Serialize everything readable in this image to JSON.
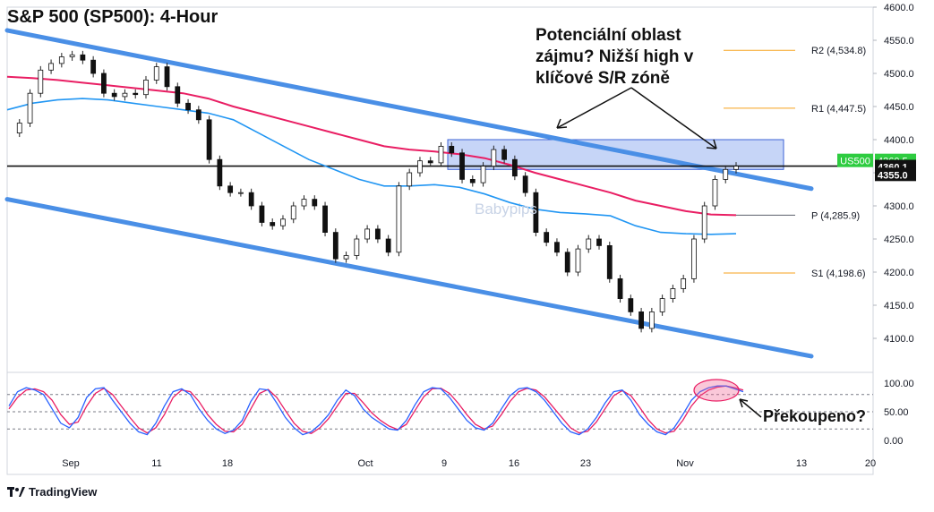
{
  "title": "S&P 500 (SP500): 4-Hour",
  "annotation_main": [
    "Potenciální oblast",
    "zájmu? Nižší high v",
    "klíčové S/R zóně"
  ],
  "annotation_overbought": "Překoupeno?",
  "watermark": "Babypips",
  "footer_logo_icon": "tradingview-logo-icon",
  "footer_text": "TradingView",
  "colors": {
    "up": "#26a69a",
    "down": "#8b0a16",
    "candle_up_body": "#26a69a",
    "ma_fast": "#2196f3",
    "ma_slow": "#e91e63",
    "channel": "#4a8fe6",
    "zone": "#5b86e8",
    "pivot_resistance": "#f7a21b",
    "stoch_k": "#2962ff",
    "stoch_d": "#e91e63",
    "last_price": "#2ecc40"
  },
  "chart_data": [
    {
      "type": "line",
      "title": "S&P 500 (SP500): 4-Hour",
      "x_ticks": [
        "Sep",
        "11",
        "18",
        "Oct",
        "9",
        "16",
        "23",
        "Nov",
        "13",
        "20"
      ],
      "y_ticks": [
        "4600.0",
        "4550.0",
        "4500.0",
        "4450.0",
        "4400.0",
        "4350.0",
        "4300.0",
        "4250.0",
        "4200.0",
        "4150.0",
        "4100.0"
      ],
      "ylim": [
        4070,
        4600
      ],
      "price_series": [
        {
          "x": "Aug 30",
          "y": 4410
        },
        {
          "x": "Aug 31",
          "y": 4425
        },
        {
          "x": "Sep 1",
          "y": 4470
        },
        {
          "x": "Sep 2",
          "y": 4505
        },
        {
          "x": "Sep 5",
          "y": 4515
        },
        {
          "x": "Sep 6",
          "y": 4525
        },
        {
          "x": "Sep 7",
          "y": 4528
        },
        {
          "x": "Sep 8",
          "y": 4520
        },
        {
          "x": "Sep 9",
          "y": 4500
        },
        {
          "x": "Sep 11",
          "y": 4470
        },
        {
          "x": "Sep 12",
          "y": 4465
        },
        {
          "x": "Sep 13",
          "y": 4470
        },
        {
          "x": "Sep 14",
          "y": 4468
        },
        {
          "x": "Sep 15",
          "y": 4490
        },
        {
          "x": "Sep 16",
          "y": 4510
        },
        {
          "x": "Sep 17",
          "y": 4480
        },
        {
          "x": "Sep 18",
          "y": 4455
        },
        {
          "x": "Sep 19",
          "y": 4445
        },
        {
          "x": "Sep 20",
          "y": 4430
        },
        {
          "x": "Sep 21",
          "y": 4370
        },
        {
          "x": "Sep 22",
          "y": 4330
        },
        {
          "x": "Sep 25",
          "y": 4320
        },
        {
          "x": "Sep 26",
          "y": 4320
        },
        {
          "x": "Sep 27",
          "y": 4300
        },
        {
          "x": "Sep 28",
          "y": 4275
        },
        {
          "x": "Sep 29",
          "y": 4270
        },
        {
          "x": "Sep 30",
          "y": 4280
        },
        {
          "x": "Oct 2",
          "y": 4300
        },
        {
          "x": "Oct 3",
          "y": 4310
        },
        {
          "x": "Oct 4",
          "y": 4300
        },
        {
          "x": "Oct 5",
          "y": 4260
        },
        {
          "x": "Oct 6",
          "y": 4220
        },
        {
          "x": "Oct 7",
          "y": 4225
        },
        {
          "x": "Oct 8",
          "y": 4250
        },
        {
          "x": "Oct 9",
          "y": 4265
        },
        {
          "x": "Oct 10",
          "y": 4250
        },
        {
          "x": "Oct 11",
          "y": 4230
        },
        {
          "x": "Oct 12",
          "y": 4330
        },
        {
          "x": "Oct 13",
          "y": 4350
        },
        {
          "x": "Oct 14",
          "y": 4368
        },
        {
          "x": "Oct 15",
          "y": 4365
        },
        {
          "x": "Oct 16",
          "y": 4390
        },
        {
          "x": "Oct 17",
          "y": 4380
        },
        {
          "x": "Oct 18",
          "y": 4340
        },
        {
          "x": "Oct 19",
          "y": 4335
        },
        {
          "x": "Oct 20",
          "y": 4360
        },
        {
          "x": "Oct 22",
          "y": 4385
        },
        {
          "x": "Oct 23",
          "y": 4370
        },
        {
          "x": "Oct 24",
          "y": 4345
        },
        {
          "x": "Oct 25",
          "y": 4320
        },
        {
          "x": "Oct 26",
          "y": 4260
        },
        {
          "x": "Oct 27",
          "y": 4245
        },
        {
          "x": "Oct 28",
          "y": 4230
        },
        {
          "x": "Oct 29",
          "y": 4200
        },
        {
          "x": "Oct 30",
          "y": 4235
        },
        {
          "x": "Oct 31",
          "y": 4250
        },
        {
          "x": "Nov 1",
          "y": 4240
        },
        {
          "x": "Nov 2",
          "y": 4190
        },
        {
          "x": "Nov 3",
          "y": 4160
        },
        {
          "x": "Nov 4",
          "y": 4140
        },
        {
          "x": "Nov 5",
          "y": 4115
        },
        {
          "x": "Nov 6",
          "y": 4140
        },
        {
          "x": "Nov 7",
          "y": 4160
        },
        {
          "x": "Nov 8",
          "y": 4175
        },
        {
          "x": "Nov 9",
          "y": 4190
        },
        {
          "x": "Nov 10",
          "y": 4250
        },
        {
          "x": "Nov 11",
          "y": 4300
        },
        {
          "x": "Nov 12",
          "y": 4340
        },
        {
          "x": "Nov 13",
          "y": 4355
        },
        {
          "x": "Nov 14",
          "y": 4360
        }
      ],
      "ma_fast": [
        4445,
        4455,
        4460,
        4462,
        4460,
        4455,
        4450,
        4445,
        4440,
        4430,
        4410,
        4390,
        4370,
        4355,
        4340,
        4330,
        4330,
        4332,
        4328,
        4318,
        4305,
        4295,
        4290,
        4288,
        4285,
        4270,
        4260,
        4258,
        4257,
        4258
      ],
      "ma_slow": [
        4495,
        4493,
        4490,
        4486,
        4482,
        4478,
        4474,
        4470,
        4462,
        4450,
        4440,
        4430,
        4420,
        4410,
        4400,
        4390,
        4385,
        4382,
        4378,
        4372,
        4362,
        4350,
        4340,
        4330,
        4320,
        4308,
        4300,
        4292,
        4287,
        4286
      ],
      "channel_lines": [
        {
          "name": "upper",
          "start_y": 4565,
          "end_y": 4326
        },
        {
          "name": "lower",
          "start_y": 4310,
          "end_y": 4073
        }
      ],
      "horizontal_line": 4360.1,
      "zone": {
        "from": 4355,
        "to": 4400
      },
      "pivot_levels": [
        {
          "name": "R2",
          "value": 4534.8,
          "label": "R2 (4,534.8)"
        },
        {
          "name": "R1",
          "value": 4447.5,
          "label": "R1 (4,447.5)"
        },
        {
          "name": "P",
          "value": 4285.9,
          "label": "P (4,285.9)"
        },
        {
          "name": "S1",
          "value": 4198.6,
          "label": "S1 (4,198.6)"
        }
      ],
      "price_tags": [
        {
          "label": "US500",
          "value": "4360.5",
          "kind": "symbol"
        },
        {
          "label": "",
          "value": "4360.1",
          "kind": "line"
        },
        {
          "label": "",
          "value": "4355.0",
          "kind": "line"
        }
      ]
    },
    {
      "type": "line",
      "title": "",
      "y_ticks": [
        "100.00",
        "50.00",
        "0.00"
      ],
      "ylim": [
        0,
        100
      ],
      "levels": [
        80,
        50,
        20
      ],
      "stoch_k": [
        60,
        85,
        92,
        88,
        80,
        55,
        30,
        22,
        40,
        75,
        90,
        92,
        70,
        50,
        30,
        15,
        10,
        30,
        60,
        85,
        90,
        80,
        55,
        35,
        20,
        12,
        18,
        35,
        68,
        90,
        88,
        65,
        40,
        22,
        10,
        15,
        28,
        45,
        70,
        88,
        78,
        55,
        40,
        30,
        20,
        18,
        35,
        62,
        85,
        92,
        90,
        75,
        55,
        35,
        22,
        18,
        30,
        55,
        78,
        90,
        92,
        85,
        70,
        50,
        30,
        15,
        10,
        20,
        40,
        65,
        85,
        88,
        70,
        45,
        28,
        15,
        10,
        22,
        45,
        70,
        85,
        92,
        95,
        95,
        90,
        85
      ],
      "stoch_d": [
        55,
        75,
        88,
        90,
        85,
        70,
        45,
        28,
        32,
        60,
        82,
        91,
        80,
        60,
        40,
        22,
        13,
        22,
        45,
        75,
        88,
        85,
        68,
        45,
        28,
        16,
        15,
        28,
        55,
        82,
        89,
        75,
        52,
        30,
        16,
        12,
        22,
        38,
        60,
        82,
        82,
        66,
        48,
        35,
        25,
        19,
        28,
        52,
        76,
        90,
        91,
        82,
        65,
        45,
        28,
        20,
        25,
        45,
        68,
        85,
        91,
        88,
        76,
        58,
        40,
        22,
        13,
        16,
        32,
        55,
        78,
        87,
        78,
        58,
        36,
        20,
        13,
        16,
        35,
        60,
        78,
        88,
        93,
        95,
        92,
        88
      ]
    }
  ]
}
